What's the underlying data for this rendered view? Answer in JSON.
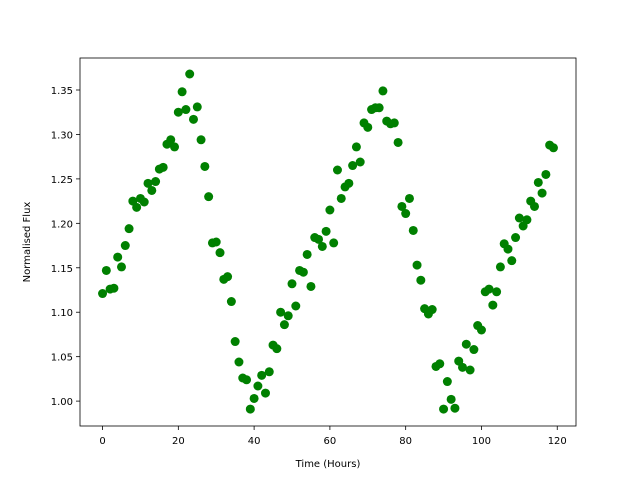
{
  "chart_data": {
    "type": "scatter",
    "xlabel": "Time (Hours)",
    "ylabel": "Normalised Flux",
    "color": "#008000",
    "x": [
      0,
      1,
      2,
      3,
      4,
      5,
      6,
      7,
      8,
      9,
      10,
      11,
      12,
      13,
      14,
      15,
      16,
      17,
      18,
      19,
      20,
      21,
      22,
      23,
      24,
      25,
      26,
      27,
      28,
      29,
      30,
      31,
      32,
      33,
      34,
      35,
      36,
      37,
      38,
      39,
      40,
      41,
      42,
      43,
      44,
      45,
      46,
      47,
      48,
      49,
      50,
      51,
      52,
      53,
      54,
      55,
      56,
      57,
      58,
      59,
      60,
      61,
      62,
      63,
      64,
      65,
      66,
      67,
      68,
      69,
      70,
      71,
      72,
      73,
      74,
      75,
      76,
      77,
      78,
      79,
      80,
      81,
      82,
      83,
      84,
      85,
      86,
      87,
      88,
      89,
      90,
      91,
      92,
      93,
      94,
      95,
      96,
      97,
      98,
      99,
      100,
      101,
      102,
      103,
      104,
      105,
      106,
      107,
      108,
      109,
      110,
      111,
      112,
      113,
      114,
      115,
      116,
      117,
      118,
      119
    ],
    "values": [
      1.121,
      1.147,
      1.126,
      1.127,
      1.162,
      1.151,
      1.175,
      1.194,
      1.225,
      1.218,
      1.228,
      1.224,
      1.245,
      1.237,
      1.247,
      1.261,
      1.263,
      1.289,
      1.294,
      1.286,
      1.325,
      1.348,
      1.328,
      1.368,
      1.317,
      1.331,
      1.294,
      1.264,
      1.23,
      1.178,
      1.179,
      1.167,
      1.137,
      1.14,
      1.112,
      1.067,
      1.044,
      1.026,
      1.024,
      0.991,
      1.003,
      1.017,
      1.029,
      1.009,
      1.033,
      1.063,
      1.059,
      1.1,
      1.086,
      1.096,
      1.132,
      1.107,
      1.147,
      1.145,
      1.165,
      1.129,
      1.184,
      1.182,
      1.174,
      1.191,
      1.215,
      1.178,
      1.26,
      1.228,
      1.241,
      1.245,
      1.265,
      1.286,
      1.269,
      1.313,
      1.308,
      1.328,
      1.33,
      1.33,
      1.349,
      1.315,
      1.312,
      1.313,
      1.291,
      1.219,
      1.211,
      1.228,
      1.192,
      1.153,
      1.136,
      1.104,
      1.098,
      1.103,
      1.039,
      1.042,
      0.991,
      1.022,
      1.002,
      0.992,
      1.045,
      1.038,
      1.064,
      1.035,
      1.058,
      1.085,
      1.08,
      1.123,
      1.126,
      1.108,
      1.123,
      1.151,
      1.177,
      1.171,
      1.158,
      1.184,
      1.206,
      1.197,
      1.204,
      1.225,
      1.219,
      1.246,
      1.234,
      1.255,
      1.288,
      1.285
    ],
    "xlim": [
      -5.95,
      124.95
    ],
    "ylim": [
      0.972,
      1.386
    ],
    "xticks": [
      0,
      20,
      40,
      60,
      80,
      100,
      120
    ],
    "yticks": [
      {
        "value": 1.0,
        "label": "1.00"
      },
      1.05,
      {
        "value": 1.1,
        "label": "1.10"
      },
      1.15,
      {
        "value": 1.2,
        "label": "1.20"
      },
      1.25,
      {
        "value": 1.3,
        "label": "1.30"
      },
      1.35
    ],
    "grid": false
  }
}
